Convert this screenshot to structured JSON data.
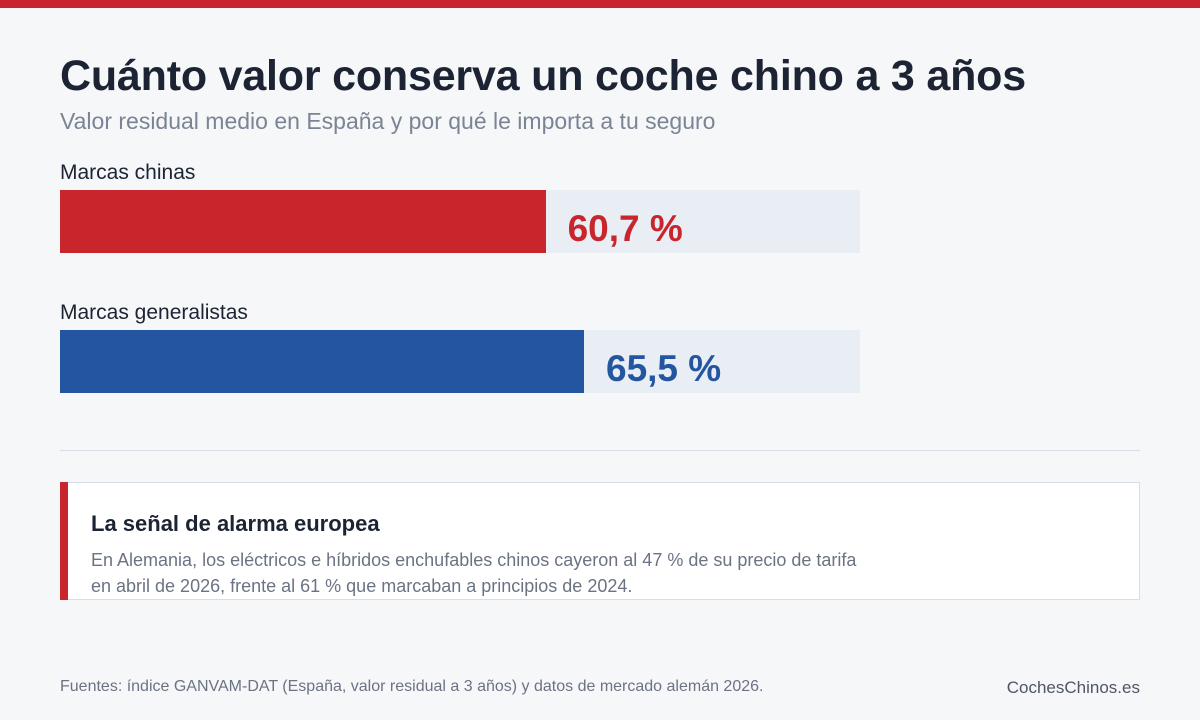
{
  "colors": {
    "accent_red": "#c9252d",
    "accent_blue": "#2355a0",
    "track": "#e9edf4"
  },
  "header": {
    "title": "Cuánto valor conserva un coche chino a 3 años",
    "subtitle": "Valor residual medio en España y por qué le importa a tu seguro"
  },
  "chart_data": {
    "type": "bar",
    "orientation": "horizontal",
    "categories": [
      "Marcas chinas",
      "Marcas generalistas"
    ],
    "values": [
      60.7,
      65.5
    ],
    "value_labels": [
      "60,7 %",
      "65,5 %"
    ],
    "colors": [
      "#c9252d",
      "#2355a0"
    ],
    "xlim": [
      0,
      100
    ],
    "grid": false
  },
  "callout": {
    "title": "La señal de alarma europea",
    "text_line1": "En Alemania, los eléctricos e híbridos enchufables chinos cayeron al 47 % de su precio de tarifa",
    "text_line2": "en abril de 2026, frente al 61 % que marcaban a principios de 2024."
  },
  "footer": {
    "source": "Fuentes: índice GANVAM-DAT (España, valor residual a 3 años) y datos de mercado alemán 2026.",
    "brand": "CochesChinos.es"
  }
}
